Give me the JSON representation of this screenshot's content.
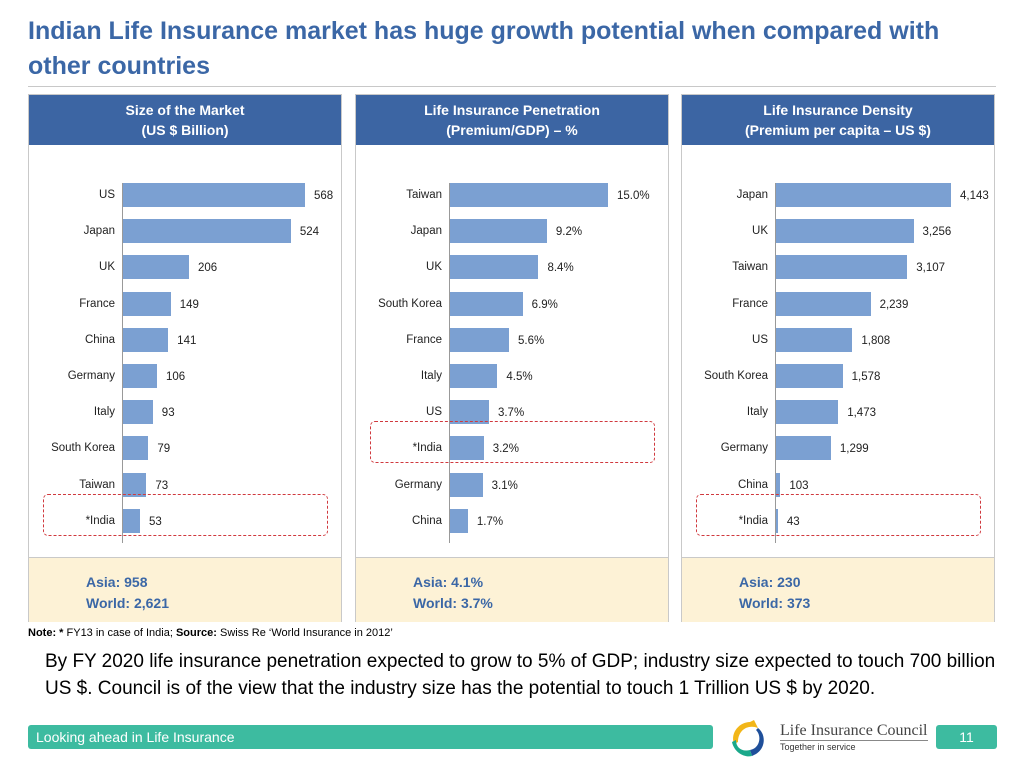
{
  "title": "Indian Life Insurance market has huge growth potential when compared with other countries",
  "chart_data": [
    {
      "type": "bar",
      "orientation": "horizontal",
      "title": "Size of the Market (US $ Billion)",
      "title_lines": [
        "Size of the Market",
        "(US $ Billion)"
      ],
      "categories": [
        "US",
        "Japan",
        "UK",
        "France",
        "China",
        "Germany",
        "Italy",
        "South Korea",
        "Taiwan",
        "*India"
      ],
      "values": [
        568,
        524,
        206,
        149,
        141,
        106,
        93,
        79,
        73,
        53
      ],
      "value_labels": [
        "568",
        "524",
        "206",
        "149",
        "141",
        "106",
        "93",
        "79",
        "73",
        "53"
      ],
      "highlight": "*India",
      "bar_color": "#7ba0d2",
      "footer": [
        "Asia: 958",
        "World: 2,621"
      ]
    },
    {
      "type": "bar",
      "orientation": "horizontal",
      "title": "Life Insurance Penetration (Premium/GDP) – %",
      "title_lines": [
        "Life Insurance Penetration",
        "(Premium/GDP) – %"
      ],
      "categories": [
        "Taiwan",
        "Japan",
        "UK",
        "South Korea",
        "France",
        "Italy",
        "US",
        "*India",
        "Germany",
        "China"
      ],
      "values": [
        15.0,
        9.2,
        8.4,
        6.9,
        5.6,
        4.5,
        3.7,
        3.2,
        3.1,
        1.7
      ],
      "value_labels": [
        "15.0%",
        "9.2%",
        "8.4%",
        "6.9%",
        "5.6%",
        "4.5%",
        "3.7%",
        "3.2%",
        "3.1%",
        "1.7%"
      ],
      "highlight": "*India",
      "bar_color": "#7ba0d2",
      "footer": [
        "Asia: 4.1%",
        "World: 3.7%"
      ]
    },
    {
      "type": "bar",
      "orientation": "horizontal",
      "title": "Life Insurance Density (Premium per capita – US $)",
      "title_lines": [
        "Life Insurance Density",
        "(Premium per capita – US $)"
      ],
      "categories": [
        "Japan",
        "UK",
        "Taiwan",
        "France",
        "US",
        "South Korea",
        "Italy",
        "Germany",
        "China",
        "*India"
      ],
      "values": [
        4143,
        3256,
        3107,
        2239,
        1808,
        1578,
        1473,
        1299,
        103,
        43
      ],
      "value_labels": [
        "4,143",
        "3,256",
        "3,107",
        "2,239",
        "1,808",
        "1,578",
        "1,473",
        "1,299",
        "103",
        "43"
      ],
      "highlight": "*India",
      "bar_color": "#7ba0d2",
      "footer": [
        "Asia: 230",
        "World: 373"
      ]
    }
  ],
  "note": {
    "note_label": "Note: *",
    "note_text": " FY13 in case of India; ",
    "source_label": "Source:",
    "source_text": " Swiss Re ‘World Insurance in 2012’"
  },
  "body_text": "By FY 2020 life insurance penetration expected to grow to 5% of GDP; industry size expected to touch 700 billion US $. Council is of the view that the industry size has the potential to touch 1 Trillion US $ by 2020.",
  "footer": {
    "label": "Looking ahead in Life Insurance",
    "brand": "Life Insurance Council",
    "tagline": "Together in service",
    "page_number": "11"
  },
  "colors": {
    "title": "#3b67a6",
    "header": "#3c65a3",
    "bar": "#7ba0d2",
    "stats_bg": "#fdf2d6",
    "highlight": "#d0393e",
    "footer": "#3dbba0"
  }
}
